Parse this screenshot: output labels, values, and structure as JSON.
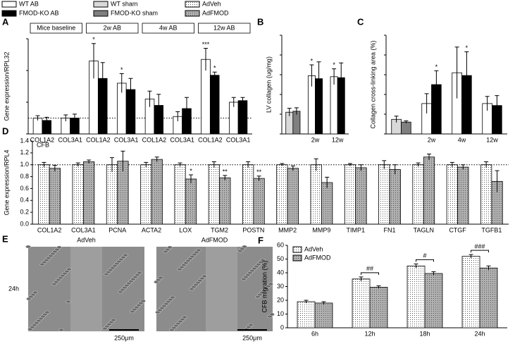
{
  "legend": [
    {
      "name": "WT  AB",
      "color": "#ffffff"
    },
    {
      "name": "FMOD-KO AB",
      "color": "#000000"
    },
    {
      "name": "WT sham",
      "color": "#d9d9d9"
    },
    {
      "name": "FMOD-KO sham",
      "color": "#808080"
    },
    {
      "name": "AdVeh",
      "color": "#ffffff",
      "pattern": "dots"
    },
    {
      "name": "AdFMOD",
      "color": "#b0b0b0",
      "pattern": "dots"
    }
  ],
  "panel_e": {
    "panel": "E",
    "row_label": "24h",
    "images": [
      {
        "label": "AdVeh",
        "scale_bar": "250μm"
      },
      {
        "label": "AdFMOD",
        "scale_bar": "250μm"
      }
    ]
  },
  "chart_data": [
    {
      "panel": "A",
      "type": "bar",
      "y_label": "Gene expression/RPL32",
      "ylim": [
        0,
        6
      ],
      "yticks": [
        0,
        2,
        4,
        6
      ],
      "reference_line": 1,
      "groups": [
        {
          "label": "Mice baseline",
          "size": 2
        },
        {
          "label": "2w AB",
          "size": 2
        },
        {
          "label": "4w AB",
          "size": 2
        },
        {
          "label": "12w AB",
          "size": 2
        }
      ],
      "categories": [
        "COL1A2",
        "COL3A1",
        "COL1A2",
        "COL3A1",
        "COL1A2",
        "COL3A1",
        "COL1A2",
        "COL3A1"
      ],
      "series": [
        {
          "color": "#ffffff",
          "values": [
            1.0,
            1.0,
            4.6,
            3.2,
            2.2,
            1.1,
            4.7,
            2.0
          ],
          "errors": [
            0.15,
            0.2,
            1.1,
            0.6,
            0.5,
            0.3,
            0.7,
            0.3
          ],
          "significance": [
            null,
            null,
            "*",
            "*",
            null,
            null,
            "***",
            null
          ]
        },
        {
          "color": "#000000",
          "values": [
            0.85,
            1.0,
            3.5,
            2.8,
            1.8,
            1.6,
            3.7,
            2.1
          ],
          "errors": [
            0.2,
            0.25,
            1.0,
            0.7,
            0.7,
            0.7,
            0.2,
            0.2
          ],
          "significance": [
            null,
            null,
            null,
            null,
            null,
            null,
            "*",
            null
          ]
        }
      ]
    },
    {
      "panel": "B",
      "type": "bar",
      "y_label": "LV collagen (ug/mg)",
      "ylim": [
        0,
        10
      ],
      "yticks": [
        0,
        2,
        4,
        6,
        8,
        10
      ],
      "categories": [
        null,
        "2w",
        "12w"
      ],
      "series": [
        {
          "colors": [
            "#d9d9d9",
            "#ffffff",
            "#ffffff"
          ],
          "values": [
            2.2,
            5.9,
            5.8
          ],
          "errors": [
            0.4,
            1.1,
            0.8
          ],
          "significance": [
            null,
            "*",
            "*"
          ]
        },
        {
          "colors": [
            "#808080",
            "#000000",
            "#000000"
          ],
          "values": [
            2.3,
            5.6,
            5.7
          ],
          "errors": [
            0.35,
            1.7,
            1.5
          ],
          "significance": [
            null,
            null,
            null
          ]
        }
      ]
    },
    {
      "panel": "C",
      "type": "bar",
      "y_label": "Collagen cross-linking area (%)",
      "ylim": [
        0,
        2.5
      ],
      "yticks": [
        0,
        0.5,
        1,
        1.5,
        2,
        2.5
      ],
      "categories": [
        null,
        "2w",
        "4w",
        "12w"
      ],
      "series": [
        {
          "colors": [
            "#d9d9d9",
            "#ffffff",
            "#ffffff",
            "#ffffff"
          ],
          "values": [
            0.37,
            0.77,
            1.55,
            0.77
          ],
          "errors": [
            0.08,
            0.25,
            0.65,
            0.18
          ],
          "significance": [
            null,
            null,
            null,
            null
          ]
        },
        {
          "colors": [
            "#808080",
            "#000000",
            "#000000",
            "#000000"
          ],
          "values": [
            0.3,
            1.25,
            1.48,
            0.72
          ],
          "errors": [
            0.03,
            0.35,
            0.6,
            0.25
          ],
          "significance": [
            null,
            "*",
            "*",
            null
          ]
        }
      ]
    },
    {
      "panel": "D",
      "type": "bar",
      "annotation": "CFB",
      "y_label": "Gene expression/RPL4",
      "ylim": [
        0,
        1.4
      ],
      "yticks": [
        {
          "value": 0,
          "label": "0.0"
        },
        0.2,
        0.4,
        0.6,
        0.8,
        {
          "value": 1,
          "label": "1.0"
        },
        1.2,
        1.4
      ],
      "reference_line": 1,
      "categories": [
        "COL1A2",
        "COL3A1",
        "PCNA",
        "ACTA2",
        "LOX",
        "TGM2",
        "POSTN",
        "MMP2",
        "MMP9",
        "TIMP1",
        "FN1",
        "TAGLN",
        "CTGF",
        "TGFB1"
      ],
      "series": [
        {
          "color": "#ffffff",
          "pattern": "dots",
          "values": [
            1.0,
            1.0,
            1.0,
            1.0,
            1.0,
            1.0,
            1.0,
            1.0,
            1.0,
            1.0,
            1.0,
            1.0,
            1.0,
            1.0
          ],
          "errors": [
            0.04,
            0.03,
            0.12,
            0.04,
            0.03,
            0.05,
            0.05,
            0.02,
            0.1,
            0.02,
            0.07,
            0.03,
            0.04,
            0.05
          ],
          "significance": [
            null,
            null,
            null,
            null,
            null,
            null,
            null,
            null,
            null,
            null,
            null,
            null,
            null,
            null
          ]
        },
        {
          "color": "#b0b0b0",
          "pattern": "dots",
          "values": [
            0.94,
            1.05,
            1.06,
            1.09,
            0.76,
            0.78,
            0.77,
            0.94,
            0.7,
            0.95,
            0.92,
            1.13,
            0.96,
            0.72
          ],
          "errors": [
            0.05,
            0.03,
            0.17,
            0.04,
            0.07,
            0.04,
            0.04,
            0.04,
            0.09,
            0.05,
            0.08,
            0.05,
            0.04,
            0.18
          ],
          "significance": [
            null,
            null,
            null,
            null,
            "*",
            "**",
            "**",
            null,
            null,
            null,
            null,
            null,
            null,
            null
          ]
        }
      ]
    },
    {
      "panel": "F",
      "type": "bar",
      "y_label": "CFB migration (%)",
      "ylim": [
        0,
        60
      ],
      "yticks": [
        0,
        10,
        20,
        30,
        40,
        50,
        60
      ],
      "categories": [
        "6h",
        "12h",
        "18h",
        "24h"
      ],
      "significance": [
        null,
        "##",
        "#",
        "###"
      ],
      "series": [
        {
          "name": "AdVeh",
          "color": "#ffffff",
          "pattern": "dots",
          "values": [
            19,
            35.5,
            45,
            52
          ],
          "errors": [
            1,
            1.5,
            1.5,
            1.3
          ]
        },
        {
          "name": "AdFMOD",
          "color": "#b0b0b0",
          "pattern": "dots",
          "values": [
            18,
            29.5,
            39.5,
            43.5
          ],
          "errors": [
            1,
            1,
            1.3,
            1.5
          ]
        }
      ]
    }
  ]
}
